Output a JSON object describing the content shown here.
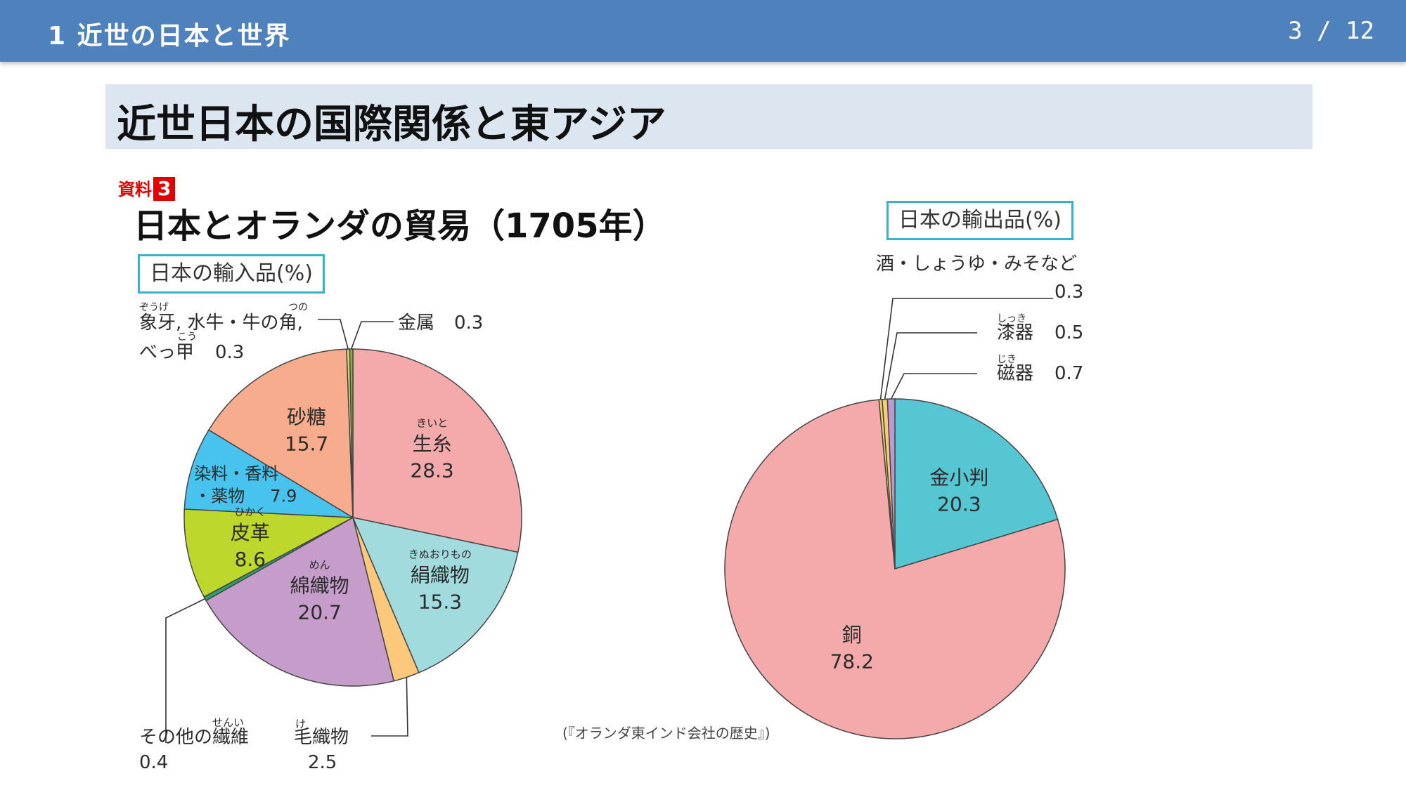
{
  "header": {
    "section_title": "1  近世の日本と世界",
    "page_indicator": "3 / 12"
  },
  "slide": {
    "title": "近世日本の国際関係と東アジア",
    "material_label": "資料",
    "material_number": "3",
    "chart_title": "日本とオランダの貿易（1705年）",
    "source": "(『オランダ東インド会社の歴史』)"
  },
  "chart_data": [
    {
      "type": "pie",
      "title": "日本の輸入品(%)",
      "unit": "%",
      "start": "top, clockwise",
      "slices": [
        {
          "label": "生糸",
          "ruby": "きいと",
          "value": 28.3,
          "color": "#f4aaaa",
          "placement": "inside"
        },
        {
          "label": "絹織物",
          "ruby": "きぬおりもの",
          "value": 15.3,
          "color": "#a2dbdd",
          "placement": "inside"
        },
        {
          "label": "毛織物",
          "ruby": "け",
          "value": 2.5,
          "color": "#fcc97c",
          "placement": "callout"
        },
        {
          "label": "綿織物",
          "ruby": "めん",
          "value": 20.7,
          "color": "#c69ccb",
          "placement": "inside"
        },
        {
          "label": "その他の繊維",
          "ruby": "せんい",
          "value": 0.4,
          "color": "#2e9e6b",
          "placement": "callout"
        },
        {
          "label": "皮革",
          "ruby": "ひかく",
          "value": 8.6,
          "color": "#bed72d",
          "placement": "inside"
        },
        {
          "label": "染料・香料・薬物",
          "value": 7.9,
          "color": "#47c3ee",
          "placement": "inside"
        },
        {
          "label": "砂糖",
          "value": 15.7,
          "color": "#f6ac8d",
          "placement": "inside"
        },
        {
          "label": "象牙, 水牛・牛の角, べっ甲",
          "ruby_parts": [
            "ぞうげ",
            "つの",
            "こう"
          ],
          "value": 0.3,
          "color": "#d7d36a",
          "placement": "callout"
        },
        {
          "label": "金属",
          "value": 0.3,
          "color": "#7fb04e",
          "placement": "callout"
        }
      ]
    },
    {
      "type": "pie",
      "title": "日本の輸出品(%)",
      "unit": "%",
      "start": "top, clockwise",
      "slices": [
        {
          "label": "金小判",
          "value": 20.3,
          "color": "#56c7d2",
          "placement": "inside"
        },
        {
          "label": "銅",
          "value": 78.2,
          "color": "#f4aaaa",
          "placement": "inside"
        },
        {
          "label": "酒・しょうゆ・みそなど",
          "value": 0.3,
          "color": "#e8d36a",
          "placement": "callout"
        },
        {
          "label": "漆器",
          "ruby": "しっき",
          "value": 0.5,
          "color": "#fcc97c",
          "placement": "callout"
        },
        {
          "label": "磁器",
          "ruby": "じき",
          "value": 0.7,
          "color": "#b89ad4",
          "placement": "callout"
        }
      ]
    }
  ]
}
